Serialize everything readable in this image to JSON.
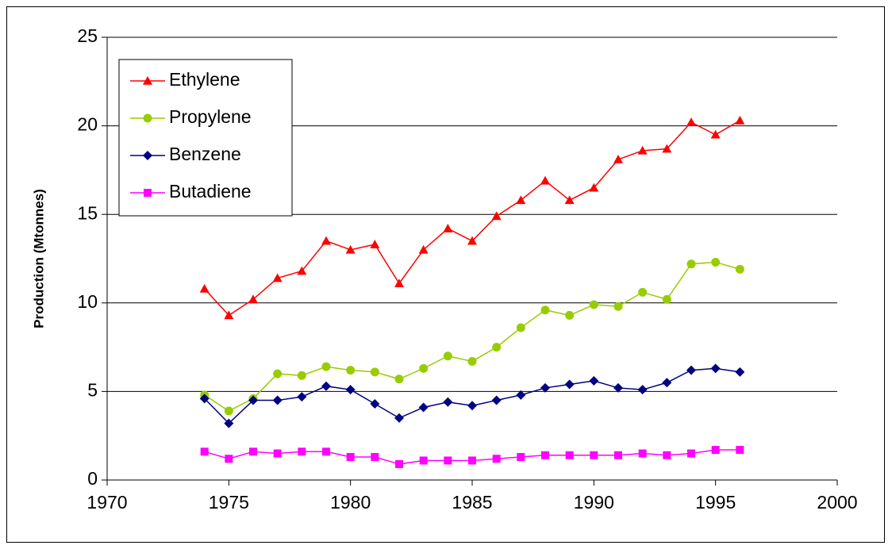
{
  "chart_data": {
    "type": "line",
    "y_label": "Production (Mtonnes)",
    "x": [
      1974,
      1975,
      1976,
      1977,
      1978,
      1979,
      1980,
      1981,
      1982,
      1983,
      1984,
      1985,
      1986,
      1987,
      1988,
      1989,
      1990,
      1991,
      1992,
      1993,
      1994,
      1995,
      1996
    ],
    "series": [
      {
        "name": "Ethylene",
        "color": "#ff0000",
        "marker": "triangle",
        "values": [
          10.8,
          9.3,
          10.2,
          11.4,
          11.8,
          13.5,
          13.0,
          13.3,
          11.1,
          13.0,
          14.2,
          13.5,
          14.9,
          15.8,
          16.9,
          15.8,
          16.5,
          18.1,
          18.6,
          18.7,
          20.2,
          19.5,
          20.3
        ]
      },
      {
        "name": "Propylene",
        "color": "#99cc00",
        "marker": "circle",
        "values": [
          4.8,
          3.9,
          4.6,
          6.0,
          5.9,
          6.4,
          6.2,
          6.1,
          5.7,
          6.3,
          7.0,
          6.7,
          7.5,
          8.6,
          9.6,
          9.3,
          9.9,
          9.8,
          10.6,
          10.2,
          12.2,
          12.3,
          11.9
        ]
      },
      {
        "name": "Benzene",
        "color": "#000080",
        "marker": "diamond",
        "values": [
          4.6,
          3.2,
          4.5,
          4.5,
          4.7,
          5.3,
          5.1,
          4.3,
          3.5,
          4.1,
          4.4,
          4.2,
          4.5,
          4.8,
          5.2,
          5.4,
          5.6,
          5.2,
          5.1,
          5.5,
          6.2,
          6.3,
          6.1
        ]
      },
      {
        "name": "Butadiene",
        "color": "#ff00ff",
        "marker": "square",
        "values": [
          1.6,
          1.2,
          1.6,
          1.5,
          1.6,
          1.6,
          1.3,
          1.3,
          0.9,
          1.1,
          1.1,
          1.1,
          1.2,
          1.3,
          1.4,
          1.4,
          1.4,
          1.4,
          1.5,
          1.4,
          1.5,
          1.7,
          1.7
        ]
      }
    ],
    "xlim": [
      1970,
      2000
    ],
    "xticks": [
      1970,
      1975,
      1980,
      1985,
      1990,
      1995,
      2000
    ],
    "ylim": [
      0,
      25
    ],
    "yticks": [
      0,
      5,
      10,
      15,
      20,
      25
    ],
    "grid": true,
    "legend": "upper-left"
  }
}
